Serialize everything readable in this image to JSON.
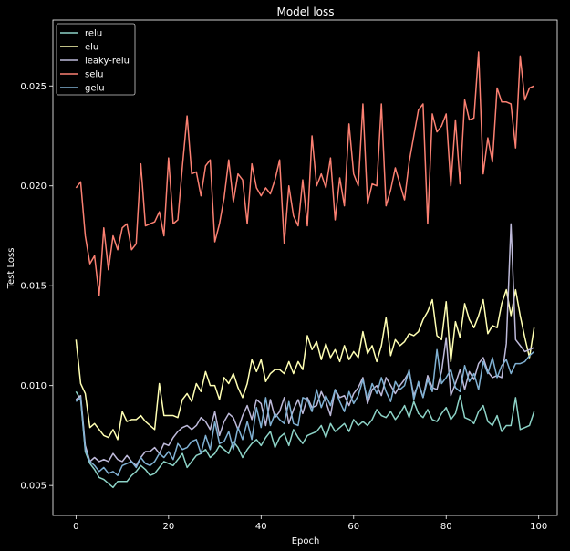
{
  "chart_data": {
    "type": "line",
    "title": "Model loss",
    "xlabel": "Epoch",
    "ylabel": "Test Loss",
    "xlim": [
      -5,
      104
    ],
    "ylim": [
      0.0035,
      0.0283
    ],
    "xticks": [
      0,
      20,
      40,
      60,
      80,
      100
    ],
    "yticks": [
      0.005,
      0.01,
      0.015,
      0.02,
      0.025
    ],
    "ytick_labels": [
      "0.005",
      "0.010",
      "0.015",
      "0.020",
      "0.025"
    ],
    "legend_position": "top-left",
    "grid": false,
    "series": [
      {
        "name": "relu",
        "color": "#8dd3c7",
        "values": [
          0.0097,
          0.0093,
          0.0067,
          0.0061,
          0.0058,
          0.0054,
          0.0053,
          0.0051,
          0.0049,
          0.0052,
          0.0052,
          0.0052,
          0.0055,
          0.0057,
          0.006,
          0.0058,
          0.0055,
          0.0056,
          0.0059,
          0.0062,
          0.0061,
          0.006,
          0.0063,
          0.0066,
          0.0059,
          0.0062,
          0.0065,
          0.0066,
          0.0068,
          0.0064,
          0.0066,
          0.007,
          0.0068,
          0.0066,
          0.0072,
          0.0069,
          0.0064,
          0.0068,
          0.0071,
          0.0073,
          0.007,
          0.0074,
          0.0077,
          0.0069,
          0.0074,
          0.0076,
          0.007,
          0.0078,
          0.0074,
          0.0071,
          0.0075,
          0.0076,
          0.0077,
          0.008,
          0.0074,
          0.0081,
          0.0077,
          0.0079,
          0.0081,
          0.0077,
          0.0083,
          0.008,
          0.0082,
          0.008,
          0.0083,
          0.0088,
          0.0085,
          0.0084,
          0.0087,
          0.0083,
          0.0086,
          0.009,
          0.0084,
          0.0092,
          0.0086,
          0.0084,
          0.0088,
          0.0083,
          0.0082,
          0.0086,
          0.0089,
          0.0083,
          0.0086,
          0.0095,
          0.0084,
          0.0083,
          0.0081,
          0.0087,
          0.009,
          0.0082,
          0.008,
          0.0085,
          0.0077,
          0.008,
          0.008,
          0.0094,
          0.0078,
          0.0079,
          0.008,
          0.0087
        ]
      },
      {
        "name": "elu",
        "color": "#ffffb3",
        "values": [
          0.0123,
          0.0101,
          0.0096,
          0.0079,
          0.0081,
          0.0078,
          0.0075,
          0.0074,
          0.0078,
          0.0073,
          0.0087,
          0.0082,
          0.0083,
          0.0083,
          0.0085,
          0.0082,
          0.008,
          0.0078,
          0.0101,
          0.0085,
          0.0085,
          0.0085,
          0.0084,
          0.0093,
          0.0096,
          0.0092,
          0.0101,
          0.0097,
          0.0107,
          0.01,
          0.01,
          0.0093,
          0.0104,
          0.0101,
          0.0106,
          0.0099,
          0.0094,
          0.0101,
          0.0113,
          0.0107,
          0.0113,
          0.0102,
          0.0106,
          0.0108,
          0.0108,
          0.0106,
          0.0112,
          0.0106,
          0.0112,
          0.0108,
          0.0125,
          0.0118,
          0.0122,
          0.0113,
          0.0121,
          0.0114,
          0.0118,
          0.0112,
          0.012,
          0.0113,
          0.0117,
          0.0114,
          0.0127,
          0.0116,
          0.012,
          0.0112,
          0.012,
          0.0134,
          0.0115,
          0.0123,
          0.012,
          0.0122,
          0.0126,
          0.0125,
          0.0127,
          0.0133,
          0.0137,
          0.0143,
          0.0125,
          0.0123,
          0.0142,
          0.0112,
          0.0132,
          0.0124,
          0.0141,
          0.0133,
          0.0129,
          0.0135,
          0.0143,
          0.0126,
          0.013,
          0.0129,
          0.0141,
          0.0148,
          0.0135,
          0.0148,
          0.0135,
          0.0124,
          0.0114,
          0.0129
        ]
      },
      {
        "name": "leaky-relu",
        "color": "#bebada",
        "values": [
          0.0093,
          0.0095,
          0.007,
          0.0062,
          0.0064,
          0.0062,
          0.0063,
          0.0062,
          0.0066,
          0.0063,
          0.0062,
          0.0065,
          0.0062,
          0.006,
          0.0064,
          0.0067,
          0.0067,
          0.0069,
          0.0066,
          0.0071,
          0.007,
          0.0074,
          0.0077,
          0.0079,
          0.008,
          0.0078,
          0.008,
          0.0084,
          0.0082,
          0.0078,
          0.0087,
          0.0075,
          0.0082,
          0.0086,
          0.0084,
          0.0078,
          0.0085,
          0.009,
          0.0083,
          0.0093,
          0.0091,
          0.008,
          0.0093,
          0.0084,
          0.0087,
          0.0094,
          0.0081,
          0.0088,
          0.0093,
          0.0086,
          0.0094,
          0.0089,
          0.009,
          0.0097,
          0.0092,
          0.0085,
          0.0098,
          0.0094,
          0.0095,
          0.009,
          0.0096,
          0.0099,
          0.0104,
          0.0091,
          0.0098,
          0.01,
          0.0095,
          0.0104,
          0.01,
          0.0096,
          0.01,
          0.0103,
          0.0107,
          0.0095,
          0.0101,
          0.0094,
          0.0105,
          0.0099,
          0.0098,
          0.0107,
          0.0124,
          0.0095,
          0.0101,
          0.0108,
          0.0098,
          0.0107,
          0.0103,
          0.0111,
          0.0114,
          0.0107,
          0.0104,
          0.0105,
          0.0104,
          0.0121,
          0.0181,
          0.0123,
          0.012,
          0.0117,
          0.0118,
          0.0119
        ]
      },
      {
        "name": "selu",
        "color": "#fb8072",
        "values": [
          0.0199,
          0.0202,
          0.0175,
          0.0161,
          0.0165,
          0.0145,
          0.0179,
          0.0158,
          0.0175,
          0.0168,
          0.0179,
          0.0181,
          0.0168,
          0.0171,
          0.0211,
          0.018,
          0.0181,
          0.0182,
          0.0187,
          0.0175,
          0.0214,
          0.0181,
          0.0183,
          0.021,
          0.0235,
          0.0206,
          0.0207,
          0.0195,
          0.021,
          0.0213,
          0.0172,
          0.0181,
          0.0194,
          0.0213,
          0.0192,
          0.0206,
          0.0203,
          0.0181,
          0.0211,
          0.0199,
          0.0195,
          0.0199,
          0.0196,
          0.0203,
          0.0213,
          0.0171,
          0.02,
          0.0185,
          0.018,
          0.0203,
          0.018,
          0.0225,
          0.02,
          0.0206,
          0.0199,
          0.0214,
          0.0183,
          0.0204,
          0.019,
          0.0231,
          0.0206,
          0.02,
          0.0241,
          0.0191,
          0.0201,
          0.02,
          0.0241,
          0.019,
          0.0198,
          0.0209,
          0.0201,
          0.0193,
          0.0212,
          0.0225,
          0.0238,
          0.0241,
          0.0181,
          0.0236,
          0.0227,
          0.023,
          0.0236,
          0.02,
          0.0233,
          0.0201,
          0.0243,
          0.0233,
          0.0234,
          0.0267,
          0.0206,
          0.0224,
          0.0212,
          0.0249,
          0.0242,
          0.0242,
          0.0241,
          0.0219,
          0.0265,
          0.0243,
          0.0249,
          0.025
        ]
      },
      {
        "name": "gelu",
        "color": "#80b1d3",
        "values": [
          0.0092,
          0.0094,
          0.0068,
          0.0062,
          0.006,
          0.0057,
          0.0059,
          0.0056,
          0.0057,
          0.0055,
          0.006,
          0.0061,
          0.0062,
          0.0059,
          0.0064,
          0.0061,
          0.006,
          0.0062,
          0.0066,
          0.0064,
          0.0067,
          0.0063,
          0.0071,
          0.0068,
          0.0069,
          0.0072,
          0.0073,
          0.0066,
          0.0075,
          0.0068,
          0.0082,
          0.0071,
          0.0072,
          0.0077,
          0.0068,
          0.0079,
          0.0073,
          0.0082,
          0.0073,
          0.0089,
          0.0079,
          0.0094,
          0.008,
          0.0086,
          0.0083,
          0.0081,
          0.0092,
          0.0081,
          0.008,
          0.0094,
          0.0093,
          0.0087,
          0.0098,
          0.0089,
          0.0095,
          0.009,
          0.0098,
          0.0092,
          0.0087,
          0.0097,
          0.0091,
          0.0095,
          0.0103,
          0.0093,
          0.0101,
          0.0096,
          0.0104,
          0.0097,
          0.0092,
          0.0102,
          0.0098,
          0.01,
          0.0108,
          0.0093,
          0.0102,
          0.0094,
          0.0103,
          0.0097,
          0.0118,
          0.0101,
          0.0104,
          0.0108,
          0.0099,
          0.0097,
          0.011,
          0.0102,
          0.0106,
          0.0098,
          0.0112,
          0.0106,
          0.0114,
          0.0104,
          0.011,
          0.0113,
          0.0106,
          0.0111,
          0.0111,
          0.0112,
          0.0115,
          0.0117
        ]
      }
    ]
  }
}
